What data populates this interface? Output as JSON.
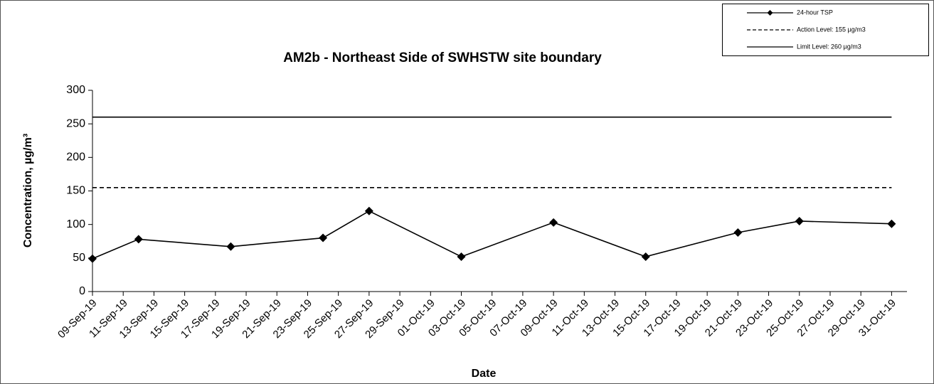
{
  "chart_data": {
    "type": "line",
    "title": "AM2b - Northeast Side of SWHSTW site boundary",
    "x_label": "Date",
    "y_label": "Concentration, µg/m³",
    "x": [
      "2019-09-09",
      "2019-09-12",
      "2019-09-18",
      "2019-09-24",
      "2019-09-27",
      "2019-10-03",
      "2019-10-09",
      "2019-10-15",
      "2019-10-21",
      "2019-10-25",
      "2019-10-31"
    ],
    "series": [
      {
        "name": "24-hour TSP",
        "color": "#000000",
        "style": "solid",
        "marker": "diamond",
        "values": [
          49,
          78,
          67,
          80,
          120,
          52,
          103,
          52,
          88,
          105,
          101
        ]
      },
      {
        "name": "Action Level: 155 µg/m3",
        "color": "#000000",
        "style": "dashed",
        "values": [
          155,
          155,
          155,
          155,
          155,
          155,
          155,
          155,
          155,
          155,
          155
        ]
      },
      {
        "name": "Limit Level: 260 µg/m3",
        "color": "#000000",
        "style": "solid",
        "values": [
          260,
          260,
          260,
          260,
          260,
          260,
          260,
          260,
          260,
          260,
          260
        ]
      }
    ],
    "xlim": [
      "2019-09-09",
      "2019-11-01"
    ],
    "xticks": [
      {
        "value": "2019-09-09",
        "label": "09-Sep-19"
      },
      {
        "value": "2019-09-11",
        "label": "11-Sep-19"
      },
      {
        "value": "2019-09-13",
        "label": "13-Sep-19"
      },
      {
        "value": "2019-09-15",
        "label": "15-Sep-19"
      },
      {
        "value": "2019-09-17",
        "label": "17-Sep-19"
      },
      {
        "value": "2019-09-19",
        "label": "19-Sep-19"
      },
      {
        "value": "2019-09-21",
        "label": "21-Sep-19"
      },
      {
        "value": "2019-09-23",
        "label": "23-Sep-19"
      },
      {
        "value": "2019-09-25",
        "label": "25-Sep-19"
      },
      {
        "value": "2019-09-27",
        "label": "27-Sep-19"
      },
      {
        "value": "2019-09-29",
        "label": "29-Sep-19"
      },
      {
        "value": "2019-10-01",
        "label": "01-Oct-19"
      },
      {
        "value": "2019-10-03",
        "label": "03-Oct-19"
      },
      {
        "value": "2019-10-05",
        "label": "05-Oct-19"
      },
      {
        "value": "2019-10-07",
        "label": "07-Oct-19"
      },
      {
        "value": "2019-10-09",
        "label": "09-Oct-19"
      },
      {
        "value": "2019-10-11",
        "label": "11-Oct-19"
      },
      {
        "value": "2019-10-13",
        "label": "13-Oct-19"
      },
      {
        "value": "2019-10-15",
        "label": "15-Oct-19"
      },
      {
        "value": "2019-10-17",
        "label": "17-Oct-19"
      },
      {
        "value": "2019-10-19",
        "label": "19-Oct-19"
      },
      {
        "value": "2019-10-21",
        "label": "21-Oct-19"
      },
      {
        "value": "2019-10-23",
        "label": "23-Oct-19"
      },
      {
        "value": "2019-10-25",
        "label": "25-Oct-19"
      },
      {
        "value": "2019-10-27",
        "label": "27-Oct-19"
      },
      {
        "value": "2019-10-29",
        "label": "29-Oct-19"
      },
      {
        "value": "2019-10-31",
        "label": "31-Oct-19"
      }
    ],
    "ylim": [
      0,
      300
    ],
    "yticks": [
      0,
      50,
      100,
      150,
      200,
      250,
      300
    ],
    "grid": false,
    "legend": "top-right"
  }
}
